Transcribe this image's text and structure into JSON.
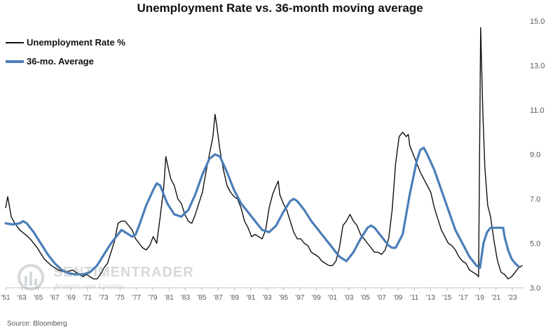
{
  "chart_data": {
    "type": "line",
    "title": "Unemployment Rate vs. 36-month moving average",
    "xlabel": "",
    "ylabel": "",
    "xlim": [
      1951,
      2024.8
    ],
    "ylim": [
      3.0,
      15.0
    ],
    "y_ticks": [
      "3.0",
      "5.0",
      "7.0",
      "9.0",
      "11.0",
      "13.0",
      "15.0"
    ],
    "y_axis_side": "right",
    "x_ticks": [
      "'51",
      "'63",
      "'65",
      "'67",
      "'69",
      "'71",
      "'73",
      "'75",
      "'77",
      "'79",
      "'81",
      "'83",
      "'85",
      "'87",
      "'89",
      "'91",
      "'93",
      "'95",
      "'97",
      "'99",
      "'01",
      "'03",
      "'05",
      "'07",
      "'09",
      "'11",
      "'13",
      "'15",
      "'17",
      "'19",
      "'21",
      "'23"
    ],
    "grid": false,
    "legend_position": "top-left",
    "series": [
      {
        "name": "Unemployment Rate %",
        "color": "#111111",
        "points": [
          [
            1951.0,
            6.6
          ],
          [
            1951.3,
            7.1
          ],
          [
            1951.8,
            6.2
          ],
          [
            1952.3,
            5.9
          ],
          [
            1953.0,
            5.6
          ],
          [
            1953.8,
            5.4
          ],
          [
            1954.5,
            5.2
          ],
          [
            1955.5,
            4.8
          ],
          [
            1956.5,
            4.3
          ],
          [
            1957.5,
            4.0
          ],
          [
            1958.5,
            3.8
          ],
          [
            1959.5,
            3.7
          ],
          [
            1960.5,
            3.8
          ],
          [
            1961.5,
            3.6
          ],
          [
            1962.0,
            3.5
          ],
          [
            1962.5,
            3.6
          ],
          [
            1963.0,
            3.5
          ],
          [
            1963.5,
            3.4
          ],
          [
            1964.0,
            3.4
          ],
          [
            1964.5,
            3.6
          ],
          [
            1965.0,
            3.9
          ],
          [
            1965.5,
            4.1
          ],
          [
            1966.0,
            4.6
          ],
          [
            1966.5,
            5.1
          ],
          [
            1967.0,
            5.9
          ],
          [
            1967.5,
            6.0
          ],
          [
            1968.0,
            6.0
          ],
          [
            1968.5,
            5.8
          ],
          [
            1969.0,
            5.6
          ],
          [
            1969.5,
            5.2
          ],
          [
            1970.0,
            5.0
          ],
          [
            1970.5,
            4.8
          ],
          [
            1971.0,
            4.7
          ],
          [
            1971.5,
            4.9
          ],
          [
            1972.0,
            5.3
          ],
          [
            1972.5,
            5.0
          ],
          [
            1973.0,
            6.2
          ],
          [
            1973.5,
            7.5
          ],
          [
            1973.8,
            8.9
          ],
          [
            1974.0,
            8.6
          ],
          [
            1974.5,
            7.9
          ],
          [
            1975.0,
            7.6
          ],
          [
            1975.5,
            7.0
          ],
          [
            1976.0,
            6.8
          ],
          [
            1976.5,
            6.3
          ],
          [
            1977.0,
            6.0
          ],
          [
            1977.5,
            5.9
          ],
          [
            1978.0,
            6.3
          ],
          [
            1978.5,
            6.8
          ],
          [
            1979.0,
            7.3
          ],
          [
            1979.5,
            8.2
          ],
          [
            1980.0,
            9.0
          ],
          [
            1980.5,
            9.8
          ],
          [
            1980.8,
            10.8
          ],
          [
            1981.0,
            10.4
          ],
          [
            1981.5,
            9.2
          ],
          [
            1982.0,
            8.3
          ],
          [
            1982.5,
            7.6
          ],
          [
            1983.0,
            7.3
          ],
          [
            1983.5,
            7.1
          ],
          [
            1984.0,
            7.0
          ],
          [
            1984.5,
            6.6
          ],
          [
            1985.0,
            6.0
          ],
          [
            1985.5,
            5.7
          ],
          [
            1986.0,
            5.3
          ],
          [
            1986.5,
            5.4
          ],
          [
            1987.0,
            5.3
          ],
          [
            1987.5,
            5.2
          ],
          [
            1988.0,
            5.6
          ],
          [
            1988.5,
            6.6
          ],
          [
            1989.0,
            7.2
          ],
          [
            1989.5,
            7.6
          ],
          [
            1989.8,
            7.8
          ],
          [
            1990.0,
            7.2
          ],
          [
            1990.5,
            6.8
          ],
          [
            1991.0,
            6.5
          ],
          [
            1991.5,
            6.0
          ],
          [
            1992.0,
            5.5
          ],
          [
            1992.5,
            5.2
          ],
          [
            1993.0,
            5.2
          ],
          [
            1993.5,
            5.0
          ],
          [
            1994.0,
            4.9
          ],
          [
            1994.5,
            4.6
          ],
          [
            1995.0,
            4.5
          ],
          [
            1995.5,
            4.4
          ],
          [
            1996.0,
            4.2
          ],
          [
            1996.5,
            4.1
          ],
          [
            1997.0,
            4.0
          ],
          [
            1997.5,
            4.0
          ],
          [
            1998.0,
            4.2
          ],
          [
            1998.5,
            4.8
          ],
          [
            1999.0,
            5.8
          ],
          [
            1999.5,
            6.0
          ],
          [
            2000.0,
            6.3
          ],
          [
            2000.5,
            6.0
          ],
          [
            2001.0,
            5.8
          ],
          [
            2001.5,
            5.4
          ],
          [
            2002.0,
            5.2
          ],
          [
            2002.5,
            5.0
          ],
          [
            2003.0,
            4.8
          ],
          [
            2003.5,
            4.6
          ],
          [
            2004.0,
            4.6
          ],
          [
            2004.5,
            4.5
          ],
          [
            2005.0,
            4.7
          ],
          [
            2005.5,
            5.2
          ],
          [
            2006.0,
            6.5
          ],
          [
            2006.5,
            8.6
          ],
          [
            2007.0,
            9.8
          ],
          [
            2007.5,
            10.0
          ],
          [
            2008.0,
            9.8
          ],
          [
            2008.3,
            9.9
          ],
          [
            2008.5,
            9.4
          ],
          [
            2009.0,
            9.0
          ],
          [
            2009.5,
            8.6
          ],
          [
            2010.0,
            8.2
          ],
          [
            2010.5,
            7.9
          ],
          [
            2011.0,
            7.6
          ],
          [
            2011.5,
            7.3
          ],
          [
            2012.0,
            6.6
          ],
          [
            2012.5,
            6.1
          ],
          [
            2013.0,
            5.6
          ],
          [
            2013.5,
            5.3
          ],
          [
            2014.0,
            5.0
          ],
          [
            2014.5,
            4.9
          ],
          [
            2015.0,
            4.7
          ],
          [
            2015.5,
            4.4
          ],
          [
            2016.0,
            4.2
          ],
          [
            2016.5,
            4.1
          ],
          [
            2017.0,
            3.8
          ],
          [
            2017.5,
            3.7
          ],
          [
            2018.0,
            3.6
          ],
          [
            2018.3,
            3.5
          ],
          [
            2018.6,
            14.7
          ],
          [
            2018.9,
            11.0
          ],
          [
            2019.2,
            8.4
          ],
          [
            2019.6,
            6.7
          ],
          [
            2020.0,
            6.2
          ],
          [
            2020.5,
            5.1
          ],
          [
            2021.0,
            4.2
          ],
          [
            2021.5,
            3.7
          ],
          [
            2022.0,
            3.6
          ],
          [
            2022.5,
            3.4
          ],
          [
            2023.0,
            3.5
          ],
          [
            2023.5,
            3.7
          ],
          [
            2024.0,
            3.9
          ],
          [
            2024.5,
            4.0
          ]
        ]
      },
      {
        "name": "36-mo. Average",
        "color": "#4a7eb8",
        "points": [
          [
            1951.0,
            5.9
          ],
          [
            1952.0,
            5.85
          ],
          [
            1953.0,
            5.9
          ],
          [
            1953.5,
            6.0
          ],
          [
            1954.0,
            5.9
          ],
          [
            1955.0,
            5.5
          ],
          [
            1956.0,
            5.0
          ],
          [
            1957.0,
            4.5
          ],
          [
            1958.0,
            4.1
          ],
          [
            1959.0,
            3.8
          ],
          [
            1960.0,
            3.65
          ],
          [
            1961.0,
            3.6
          ],
          [
            1962.0,
            3.6
          ],
          [
            1963.0,
            3.7
          ],
          [
            1964.0,
            4.0
          ],
          [
            1965.0,
            4.5
          ],
          [
            1966.0,
            5.0
          ],
          [
            1967.0,
            5.4
          ],
          [
            1967.5,
            5.6
          ],
          [
            1968.0,
            5.5
          ],
          [
            1968.5,
            5.4
          ],
          [
            1969.0,
            5.3
          ],
          [
            1969.5,
            5.4
          ],
          [
            1970.0,
            5.8
          ],
          [
            1971.0,
            6.7
          ],
          [
            1972.0,
            7.4
          ],
          [
            1972.5,
            7.7
          ],
          [
            1973.0,
            7.6
          ],
          [
            1974.0,
            6.8
          ],
          [
            1975.0,
            6.3
          ],
          [
            1976.0,
            6.2
          ],
          [
            1977.0,
            6.5
          ],
          [
            1978.0,
            7.2
          ],
          [
            1979.0,
            8.1
          ],
          [
            1980.0,
            8.8
          ],
          [
            1980.8,
            9.0
          ],
          [
            1981.5,
            8.9
          ],
          [
            1982.5,
            8.2
          ],
          [
            1983.5,
            7.4
          ],
          [
            1984.5,
            6.8
          ],
          [
            1985.5,
            6.4
          ],
          [
            1986.5,
            6.0
          ],
          [
            1987.5,
            5.6
          ],
          [
            1988.5,
            5.5
          ],
          [
            1989.5,
            5.8
          ],
          [
            1990.5,
            6.4
          ],
          [
            1991.5,
            6.9
          ],
          [
            1992.0,
            7.0
          ],
          [
            1992.5,
            6.9
          ],
          [
            1993.5,
            6.5
          ],
          [
            1994.5,
            6.0
          ],
          [
            1995.5,
            5.6
          ],
          [
            1996.5,
            5.2
          ],
          [
            1997.5,
            4.8
          ],
          [
            1998.5,
            4.4
          ],
          [
            1999.5,
            4.2
          ],
          [
            2000.5,
            4.6
          ],
          [
            2001.5,
            5.2
          ],
          [
            2002.5,
            5.7
          ],
          [
            2003.0,
            5.8
          ],
          [
            2003.5,
            5.7
          ],
          [
            2004.5,
            5.3
          ],
          [
            2005.5,
            4.9
          ],
          [
            2006.0,
            4.8
          ],
          [
            2006.5,
            4.8
          ],
          [
            2007.5,
            5.4
          ],
          [
            2008.5,
            7.2
          ],
          [
            2009.5,
            8.7
          ],
          [
            2010.0,
            9.2
          ],
          [
            2010.5,
            9.3
          ],
          [
            2011.0,
            9.0
          ],
          [
            2012.0,
            8.3
          ],
          [
            2013.0,
            7.4
          ],
          [
            2014.0,
            6.5
          ],
          [
            2015.0,
            5.6
          ],
          [
            2016.0,
            5.0
          ],
          [
            2017.0,
            4.4
          ],
          [
            2018.0,
            4.0
          ],
          [
            2018.5,
            3.9
          ],
          [
            2019.0,
            5.0
          ],
          [
            2019.5,
            5.5
          ],
          [
            2020.0,
            5.7
          ],
          [
            2021.0,
            5.7
          ],
          [
            2021.8,
            5.7
          ],
          [
            2022.0,
            5.3
          ],
          [
            2022.5,
            4.7
          ],
          [
            2023.0,
            4.3
          ],
          [
            2023.5,
            4.1
          ],
          [
            2024.0,
            3.95
          ]
        ]
      }
    ]
  },
  "legend": {
    "items": [
      {
        "label": "Unemployment Rate %",
        "color": "#111111"
      },
      {
        "label": "36-mo. Average",
        "color": "#4a7eb8"
      }
    ]
  },
  "watermark": {
    "brand": "SENTIMENTRADER",
    "tagline": "Analysis over Emotion"
  },
  "source": "Source: Bloomberg"
}
